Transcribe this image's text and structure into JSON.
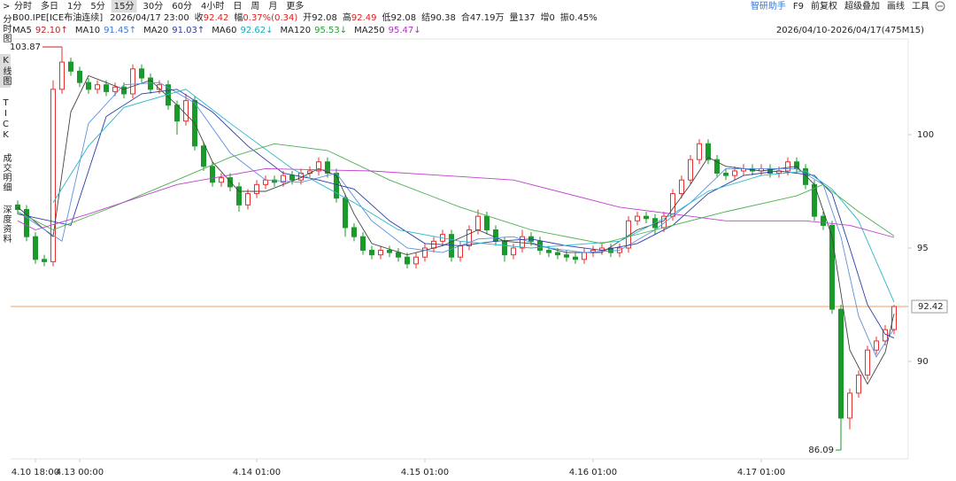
{
  "toolbar": {
    "left": [
      "分时",
      "多日",
      "1分",
      "5分",
      "15分",
      "30分",
      "60分",
      "4小时",
      "日",
      "周",
      "月",
      "更多"
    ],
    "active_index": 4,
    "right": [
      "智研助手",
      "F9",
      "前复权",
      "超级叠加",
      "画线",
      "工具"
    ]
  },
  "sidebar": {
    "tabs": [
      "分时图",
      "K线图",
      "TICK",
      "成交明细",
      "深度资料"
    ],
    "active_index": 1
  },
  "quote": {
    "symbol": "B00.IPE[ICE布油连续]",
    "time": "2026/04/17 23:00",
    "items": [
      {
        "label": "收",
        "value": "92.42",
        "color": "#e02020"
      },
      {
        "label": "幅",
        "value": "0.37%(0.34)",
        "color": "#e02020"
      },
      {
        "label": "开",
        "value": "92.08",
        "color": "#222222"
      },
      {
        "label": "高",
        "value": "92.49",
        "color": "#e02020"
      },
      {
        "label": "低",
        "value": "92.08",
        "color": "#222222"
      },
      {
        "label": "结",
        "value": "90.38",
        "color": "#222222"
      },
      {
        "label": "合",
        "value": "47.19万",
        "color": "#222222"
      },
      {
        "label": "量",
        "value": "137",
        "color": "#222222"
      },
      {
        "label": "增",
        "value": "0",
        "color": "#222222"
      },
      {
        "label": "振",
        "value": "0.45%",
        "color": "#222222"
      }
    ]
  },
  "chart_data": {
    "type": "candlestick",
    "range_label": "2026/04/10-2026/04/17(475M15)",
    "up_color": "#e8312f",
    "down_color": "#1a9a2a",
    "xlim": [
      -0.5,
      99.5
    ],
    "ylim": [
      85.8,
      104.2
    ],
    "yticks": [
      90,
      95,
      100
    ],
    "xticks": [
      {
        "value": 2,
        "label": "4.10 18:00"
      },
      {
        "value": 7,
        "label": "4.13 00:00"
      },
      {
        "value": 27,
        "label": "4.14 01:00"
      },
      {
        "value": 46,
        "label": "4.15 01:00"
      },
      {
        "value": 65,
        "label": "4.16 01:00"
      },
      {
        "value": 84,
        "label": "4.17 01:00"
      }
    ],
    "open": [
      96.9,
      96.7,
      95.5,
      94.5,
      94.4,
      102.0,
      103.2,
      102.8,
      102.3,
      102.0,
      102.2,
      101.9,
      102.1,
      101.8,
      102.9,
      102.5,
      102.0,
      102.2,
      101.3,
      100.6,
      101.5,
      99.5,
      98.6,
      97.9,
      98.1,
      97.7,
      96.9,
      97.4,
      97.8,
      98.0,
      97.9,
      98.2,
      98.0,
      98.3,
      98.4,
      98.8,
      98.3,
      97.2,
      95.9,
      95.5,
      94.9,
      94.7,
      94.9,
      94.8,
      94.6,
      94.3,
      94.6,
      95.0,
      95.3,
      95.6,
      94.6,
      95.1,
      95.8,
      96.4,
      95.8,
      95.3,
      94.7,
      95.0,
      95.5,
      95.3,
      94.9,
      94.8,
      94.7,
      94.6,
      94.5,
      94.8,
      94.9,
      95.0,
      94.8,
      95.0,
      96.2,
      96.4,
      96.3,
      95.9,
      96.4,
      97.4,
      98.0,
      98.9,
      99.6,
      98.9,
      98.3,
      98.2,
      98.4,
      98.5,
      98.4,
      98.5,
      98.3,
      98.4,
      98.8,
      98.5,
      97.8,
      96.4,
      96.0,
      92.3,
      87.5,
      88.6,
      89.4,
      90.5,
      90.9,
      91.4
    ],
    "high": [
      97.1,
      96.9,
      95.7,
      94.7,
      102.4,
      103.87,
      103.4,
      103.0,
      102.5,
      102.4,
      102.4,
      102.3,
      102.3,
      103.1,
      103.1,
      102.7,
      102.4,
      102.4,
      101.5,
      101.8,
      101.7,
      99.7,
      98.8,
      98.3,
      98.3,
      97.9,
      97.6,
      98.0,
      98.2,
      98.2,
      98.4,
      98.4,
      98.5,
      98.6,
      99.0,
      99.0,
      98.5,
      97.4,
      96.1,
      95.7,
      95.1,
      95.1,
      95.1,
      95.0,
      94.8,
      94.8,
      95.2,
      95.5,
      95.8,
      95.8,
      95.3,
      96.0,
      96.7,
      96.6,
      96.0,
      95.5,
      95.2,
      95.8,
      95.7,
      95.5,
      95.1,
      95.0,
      94.9,
      94.8,
      95.0,
      95.1,
      95.2,
      95.2,
      95.2,
      96.4,
      96.6,
      96.6,
      96.5,
      96.6,
      97.6,
      98.2,
      99.1,
      99.8,
      99.8,
      99.1,
      98.5,
      98.6,
      98.7,
      98.7,
      98.7,
      98.7,
      98.6,
      99.0,
      99.0,
      98.7,
      98.0,
      96.6,
      96.2,
      92.5,
      88.8,
      89.6,
      90.7,
      91.1,
      91.6,
      92.49
    ],
    "low": [
      96.5,
      95.3,
      94.3,
      94.2,
      94.2,
      101.8,
      102.6,
      102.1,
      101.8,
      101.8,
      101.7,
      101.7,
      101.6,
      101.6,
      102.3,
      101.8,
      101.8,
      101.1,
      100.0,
      100.4,
      99.3,
      98.4,
      97.7,
      97.7,
      97.5,
      96.6,
      96.7,
      97.2,
      97.6,
      97.7,
      97.7,
      97.8,
      97.8,
      98.1,
      98.2,
      98.1,
      97.0,
      95.5,
      95.3,
      94.7,
      94.5,
      94.5,
      94.6,
      94.4,
      94.1,
      94.1,
      94.4,
      94.8,
      95.1,
      94.4,
      94.4,
      94.9,
      95.6,
      95.6,
      95.1,
      94.4,
      94.5,
      94.8,
      95.1,
      94.7,
      94.6,
      94.5,
      94.4,
      94.3,
      94.3,
      94.6,
      94.7,
      94.6,
      94.6,
      94.8,
      96.0,
      96.1,
      95.6,
      95.7,
      96.2,
      97.2,
      97.8,
      98.7,
      98.7,
      98.1,
      98.0,
      98.0,
      98.2,
      98.2,
      98.2,
      98.1,
      98.1,
      98.2,
      98.3,
      97.6,
      96.2,
      95.8,
      92.1,
      86.09,
      87.0,
      88.4,
      89.2,
      90.3,
      90.7,
      91.2
    ],
    "close": [
      96.7,
      95.5,
      94.5,
      94.4,
      102.0,
      103.2,
      102.8,
      102.3,
      102.0,
      102.2,
      101.9,
      102.1,
      101.8,
      102.9,
      102.5,
      102.0,
      102.2,
      101.3,
      100.6,
      101.5,
      99.5,
      98.6,
      97.9,
      98.1,
      97.7,
      96.9,
      97.4,
      97.8,
      98.0,
      97.9,
      98.2,
      98.0,
      98.3,
      98.4,
      98.8,
      98.3,
      97.2,
      95.9,
      95.5,
      94.9,
      94.7,
      94.9,
      94.8,
      94.6,
      94.3,
      94.6,
      95.0,
      95.3,
      95.6,
      94.6,
      95.1,
      95.8,
      96.4,
      95.8,
      95.3,
      94.7,
      95.0,
      95.5,
      95.3,
      94.9,
      94.8,
      94.7,
      94.6,
      94.5,
      94.8,
      94.9,
      95.0,
      94.8,
      95.0,
      96.2,
      96.4,
      96.3,
      95.9,
      96.4,
      97.4,
      98.0,
      98.9,
      99.6,
      98.9,
      98.3,
      98.2,
      98.4,
      98.5,
      98.4,
      98.5,
      98.3,
      98.4,
      98.8,
      98.5,
      97.8,
      96.4,
      96.0,
      92.3,
      87.5,
      88.6,
      89.4,
      90.5,
      90.9,
      91.4,
      92.42
    ],
    "max_mark": {
      "index": 5,
      "value": 103.87
    },
    "min_mark": {
      "index": 93,
      "value": 86.09
    },
    "last_price": 92.42,
    "last_price_color": "#f0a060",
    "series": [
      {
        "name": "MA5",
        "legend_value": "92.10↑",
        "color": "#444444",
        "legend_color": "#c02020",
        "x": [
          0,
          4,
          6,
          8,
          12,
          15,
          18,
          20,
          22,
          25,
          28,
          32,
          34,
          36,
          38,
          40,
          44,
          48,
          52,
          55,
          58,
          62,
          66,
          70,
          73,
          76,
          78,
          80,
          84,
          88,
          90,
          92,
          94,
          96,
          98,
          99
        ],
        "values": [
          96.8,
          95.5,
          101,
          102.6,
          102,
          102.4,
          101.3,
          100.5,
          98.8,
          97.5,
          97.5,
          98.1,
          98.5,
          98.2,
          96.5,
          95.2,
          94.7,
          95.1,
          95.8,
          95.3,
          95.2,
          94.8,
          94.8,
          95.8,
          96.2,
          97.8,
          99,
          98.6,
          98.4,
          98.6,
          97.8,
          95.5,
          90.5,
          89.0,
          90.4,
          92.1
        ]
      },
      {
        "name": "MA10",
        "legend_value": "91.45↑",
        "color": "#5b8fe0",
        "legend_color": "#3a78d8",
        "x": [
          0,
          5,
          8,
          12,
          16,
          20,
          24,
          28,
          32,
          36,
          40,
          44,
          48,
          52,
          56,
          60,
          64,
          68,
          72,
          76,
          80,
          84,
          88,
          91,
          93,
          95,
          97,
          99
        ],
        "values": [
          96.6,
          95.3,
          100.5,
          102.2,
          102.3,
          101.4,
          99.2,
          98.0,
          97.9,
          98.3,
          96.2,
          95.0,
          94.8,
          95.4,
          95.5,
          95.0,
          94.8,
          94.9,
          95.8,
          97.0,
          98.5,
          98.5,
          98.5,
          97.8,
          95.5,
          92.0,
          90.2,
          91.45
        ]
      },
      {
        "name": "MA20",
        "legend_value": "91.03↑",
        "color": "#2a3aa8",
        "legend_color": "#2a3aa8",
        "x": [
          0,
          6,
          10,
          14,
          18,
          22,
          26,
          30,
          34,
          38,
          42,
          46,
          50,
          54,
          58,
          62,
          66,
          70,
          74,
          78,
          82,
          86,
          90,
          92,
          94,
          96,
          98,
          99
        ],
        "values": [
          96.5,
          96,
          100.8,
          101.8,
          102,
          101,
          99.5,
          98.3,
          98.0,
          97.6,
          96.2,
          95.2,
          95.1,
          95.3,
          95.4,
          95.1,
          94.9,
          95.2,
          96,
          97.4,
          98.2,
          98.4,
          98.2,
          97.4,
          95,
          92.5,
          91.2,
          91.03
        ]
      },
      {
        "name": "MA60",
        "legend_value": "92.62↓",
        "color": "#2bb8c8",
        "legend_color": "#1fa8b8",
        "x": [
          4,
          8,
          12,
          19,
          24,
          31,
          38,
          43,
          50,
          58,
          68,
          74,
          78,
          84,
          89,
          92,
          95,
          99
        ],
        "values": [
          97,
          99.5,
          101.2,
          102,
          100.5,
          98.5,
          97,
          95.8,
          95.3,
          95.0,
          95.3,
          96.5,
          97.5,
          98.2,
          98.4,
          97.6,
          96.2,
          92.62
        ]
      },
      {
        "name": "MA120",
        "legend_value": "95.53↓",
        "color": "#4caf50",
        "legend_color": "#2e9a3a",
        "x": [
          0,
          4,
          10,
          18,
          24,
          29,
          35,
          42,
          50,
          58,
          66,
          72,
          80,
          88,
          91,
          95,
          99
        ],
        "values": [
          96.6,
          95.8,
          96.7,
          98,
          99,
          99.6,
          99.3,
          98,
          96.8,
          95.8,
          95.2,
          95.8,
          96.6,
          97.3,
          97.8,
          96.6,
          95.53
        ]
      },
      {
        "name": "MA250",
        "legend_value": "95.47↓",
        "color": "#c040d0",
        "legend_color": "#b030c8",
        "x": [
          0,
          2,
          8,
          18,
          28,
          40,
          56,
          68,
          80,
          89,
          94,
          99
        ],
        "values": [
          96.2,
          95.8,
          96.5,
          97.8,
          98.5,
          98.4,
          98.0,
          96.8,
          96.2,
          96.2,
          96.0,
          95.47
        ]
      }
    ]
  }
}
